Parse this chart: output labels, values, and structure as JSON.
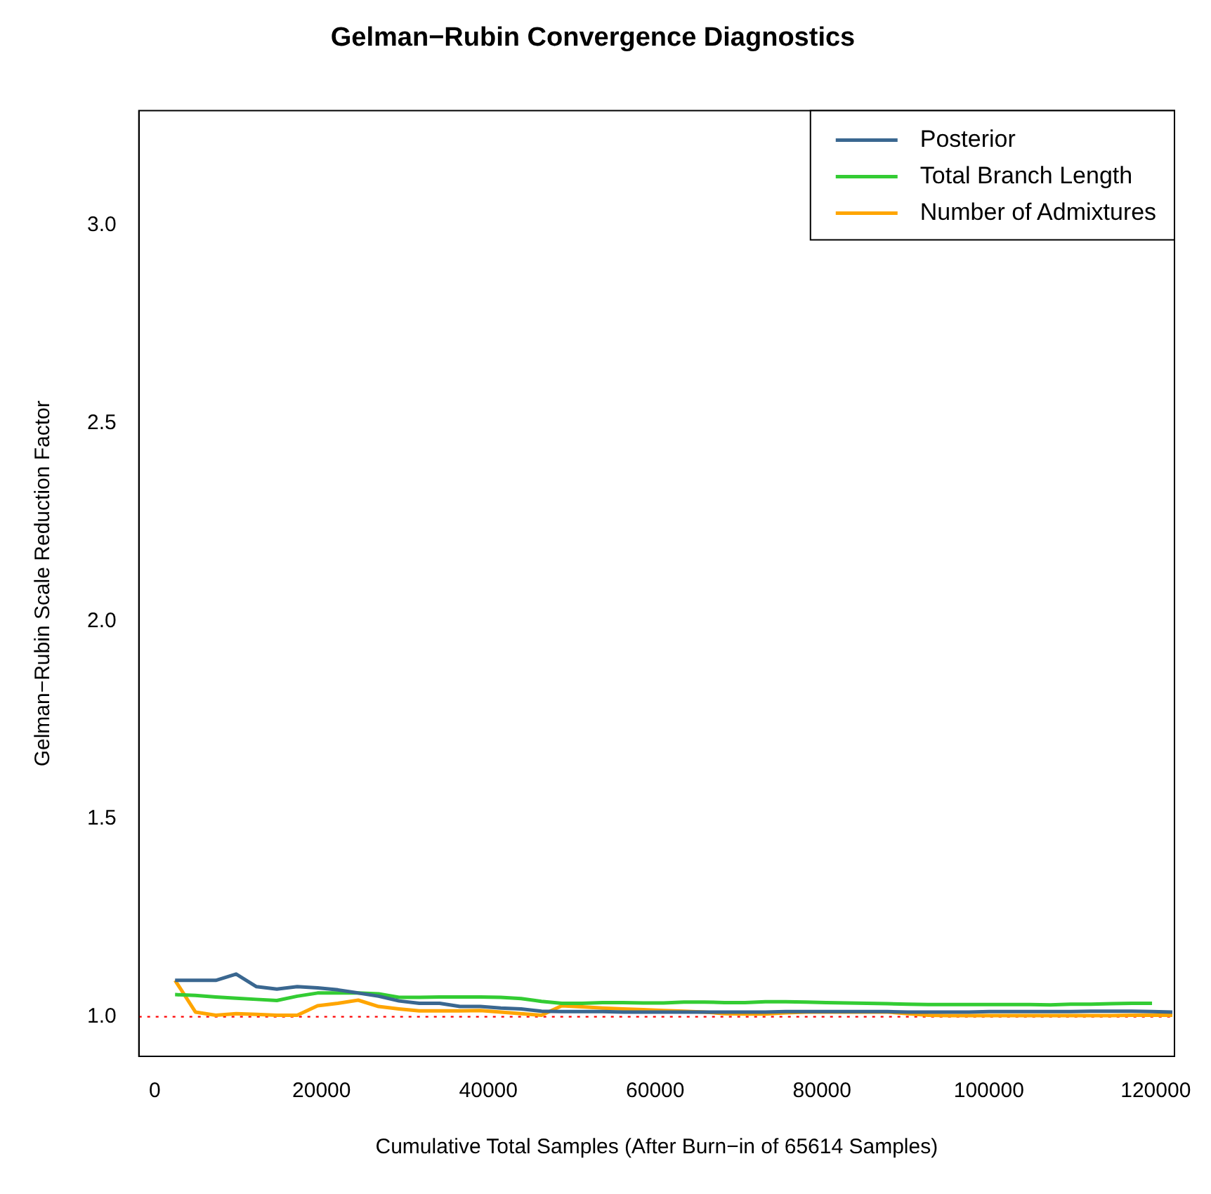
{
  "chart_data": {
    "type": "line",
    "title": "Gelman−Rubin Convergence Diagnostics",
    "xlabel": "Cumulative Total Samples (After Burn−in of 65614 Samples)",
    "ylabel": "Gelman−Rubin Scale Reduction Factor",
    "x": [
      2440,
      4880,
      7320,
      9760,
      12200,
      14640,
      17080,
      19520,
      21960,
      24400,
      26840,
      29280,
      31720,
      34160,
      36600,
      39040,
      41480,
      43920,
      46360,
      48800,
      51240,
      53680,
      56120,
      58560,
      61000,
      63440,
      65880,
      68320,
      70760,
      73200,
      75640,
      78080,
      80520,
      82960,
      85400,
      87840,
      90280,
      92720,
      95160,
      97600,
      100040,
      102480,
      104920,
      107360,
      109800,
      112240,
      114680,
      117120,
      119560,
      122000
    ],
    "series": [
      {
        "name": "Posterior",
        "color": "#3a6790",
        "values": [
          1.092,
          1.092,
          1.092,
          1.108,
          1.076,
          1.07,
          1.076,
          1.073,
          1.068,
          1.06,
          1.052,
          1.04,
          1.034,
          1.034,
          1.026,
          1.026,
          1.022,
          1.02,
          1.014,
          1.013,
          1.013,
          1.013,
          1.012,
          1.012,
          1.012,
          1.012,
          1.012,
          1.012,
          1.012,
          1.012,
          1.013,
          1.013,
          1.013,
          1.013,
          1.013,
          1.013,
          1.012,
          1.012,
          1.012,
          1.012,
          1.013,
          1.013,
          1.013,
          1.013,
          1.013,
          1.014,
          1.014,
          1.014,
          1.013,
          1.012
        ]
      },
      {
        "name": "Total Branch Length",
        "color": "#33cc33",
        "values": [
          1.056,
          1.054,
          1.05,
          1.047,
          1.044,
          1.041,
          1.052,
          1.06,
          1.06,
          1.06,
          1.058,
          1.049,
          1.049,
          1.05,
          1.05,
          1.05,
          1.049,
          1.046,
          1.039,
          1.034,
          1.034,
          1.036,
          1.036,
          1.035,
          1.035,
          1.037,
          1.037,
          1.036,
          1.036,
          1.038,
          1.038,
          1.037,
          1.036,
          1.035,
          1.034,
          1.033,
          1.032,
          1.031,
          1.031,
          1.031,
          1.031,
          1.031,
          1.031,
          1.03,
          1.032,
          1.032,
          1.033,
          1.034,
          1.034,
          null
        ]
      },
      {
        "name": "Number of Admixtures",
        "color": "#ffa500",
        "values": [
          1.092,
          1.012,
          1.004,
          1.008,
          1.006,
          1.004,
          1.004,
          1.028,
          1.034,
          1.042,
          1.026,
          1.02,
          1.015,
          1.015,
          1.015,
          1.016,
          1.012,
          1.008,
          1.004,
          1.028,
          1.025,
          1.022,
          1.02,
          1.018,
          1.016,
          1.014,
          1.012,
          1.008,
          1.007,
          1.007,
          1.01,
          1.012,
          1.012,
          1.012,
          1.012,
          1.012,
          1.008,
          1.004,
          1.003,
          1.003,
          1.003,
          1.003,
          1.003,
          1.003,
          1.003,
          1.003,
          1.003,
          1.004,
          1.004,
          1.004
        ]
      }
    ],
    "xlim": [
      -1900,
      122250
    ],
    "xticks": [
      0,
      20000,
      40000,
      60000,
      80000,
      100000,
      120000
    ],
    "ylim": [
      0.9,
      3.29
    ],
    "yticks": [
      {
        "value": 1,
        "label": "1.0"
      },
      {
        "value": 1.5,
        "label": "1.5"
      },
      {
        "value": 2,
        "label": "2.0"
      },
      {
        "value": 2.5,
        "label": "2.5"
      },
      {
        "value": 3,
        "label": "3.0"
      }
    ],
    "ref_lines": [
      {
        "axis": "y",
        "value": 1,
        "color": "#ff0000",
        "line_style": "dotted"
      }
    ],
    "grid": false,
    "legend": "top right",
    "marker": "none",
    "line_style": "solid"
  }
}
